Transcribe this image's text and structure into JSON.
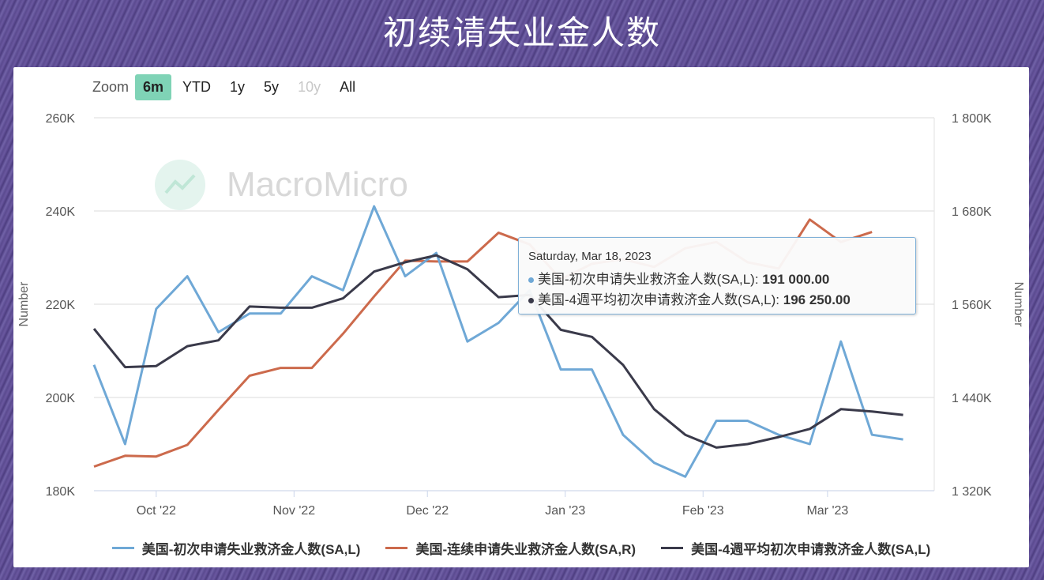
{
  "title": "初续请失业金人数",
  "zoom": {
    "label": "Zoom",
    "buttons": [
      {
        "label": "6m",
        "state": "active"
      },
      {
        "label": "YTD",
        "state": "normal"
      },
      {
        "label": "1y",
        "state": "normal"
      },
      {
        "label": "5y",
        "state": "normal"
      },
      {
        "label": "10y",
        "state": "disabled"
      },
      {
        "label": "All",
        "state": "normal"
      }
    ]
  },
  "watermark": "MacroMicro",
  "tooltip": {
    "date": "Saturday, Mar 18, 2023",
    "rows": [
      {
        "label": "美国-初次申请失业救济金人数(SA,L): ",
        "value": "191 000.00",
        "color": "#6fa8d6"
      },
      {
        "label": "美国-4週平均初次申请救济金人数(SA,L): ",
        "value": "196 250.00",
        "color": "#3a3a4a"
      }
    ]
  },
  "chart_data": {
    "type": "line",
    "x": [
      "2022-09-17",
      "2022-09-24",
      "2022-10-01",
      "2022-10-08",
      "2022-10-15",
      "2022-10-22",
      "2022-10-29",
      "2022-11-05",
      "2022-11-12",
      "2022-11-19",
      "2022-11-26",
      "2022-12-03",
      "2022-12-10",
      "2022-12-17",
      "2022-12-24",
      "2022-12-31",
      "2023-01-07",
      "2023-01-14",
      "2023-01-21",
      "2023-01-28",
      "2023-02-04",
      "2023-02-11",
      "2023-02-18",
      "2023-02-25",
      "2023-03-04",
      "2023-03-11",
      "2023-03-18"
    ],
    "x_ticks": [
      "Oct '22",
      "Nov '22",
      "Dec '22",
      "Jan '23",
      "Feb '23",
      "Mar '23"
    ],
    "x_tick_dates": [
      "2022-10-01",
      "2022-11-01",
      "2022-12-01",
      "2023-01-01",
      "2023-02-01",
      "2023-03-01"
    ],
    "left_axis": {
      "label": "Number",
      "min": 180000,
      "max": 260000,
      "ticks": [
        "180K",
        "200K",
        "220K",
        "240K",
        "260K"
      ]
    },
    "right_axis": {
      "label": "Number",
      "min": 1320000,
      "max": 1800000,
      "ticks": [
        "1 320K",
        "1 440K",
        "1 560K",
        "1 680K",
        "1 800K"
      ]
    },
    "grid": true,
    "legend_position": "bottom",
    "series": [
      {
        "name": "美国-初次申请失业救济金人数(SA,L)",
        "axis": "left",
        "color": "#6fa8d6",
        "values": [
          207000,
          190000,
          219000,
          226000,
          214000,
          218000,
          218000,
          226000,
          223000,
          241000,
          226000,
          231000,
          212000,
          216000,
          223000,
          206000,
          206000,
          192000,
          186000,
          183000,
          195000,
          195000,
          192000,
          190000,
          212000,
          192000,
          191000
        ]
      },
      {
        "name": "美国-连续申请失业救济金人数(SA,R)",
        "axis": "right",
        "color": "#cc6a4c",
        "values": [
          1351000,
          1365000,
          1364000,
          1379000,
          1424000,
          1468000,
          1478000,
          1478000,
          1522000,
          1570000,
          1616000,
          1615000,
          1615000,
          1652000,
          1637000,
          1592000,
          1612000,
          1618000,
          1608000,
          1632000,
          1640000,
          1614000,
          1606000,
          1669000,
          1640000,
          1653000,
          null
        ]
      },
      {
        "name": "美国-4週平均初次申请救济金人数(SA,L)",
        "axis": "left",
        "color": "#3a3a4a",
        "values": [
          214750,
          206500,
          206750,
          211000,
          212250,
          219500,
          219250,
          219250,
          221250,
          227000,
          229000,
          230500,
          227500,
          221500,
          222000,
          214500,
          213000,
          207000,
          197500,
          192000,
          189250,
          190000,
          191500,
          193250,
          197500,
          197000,
          196250
        ]
      }
    ]
  }
}
